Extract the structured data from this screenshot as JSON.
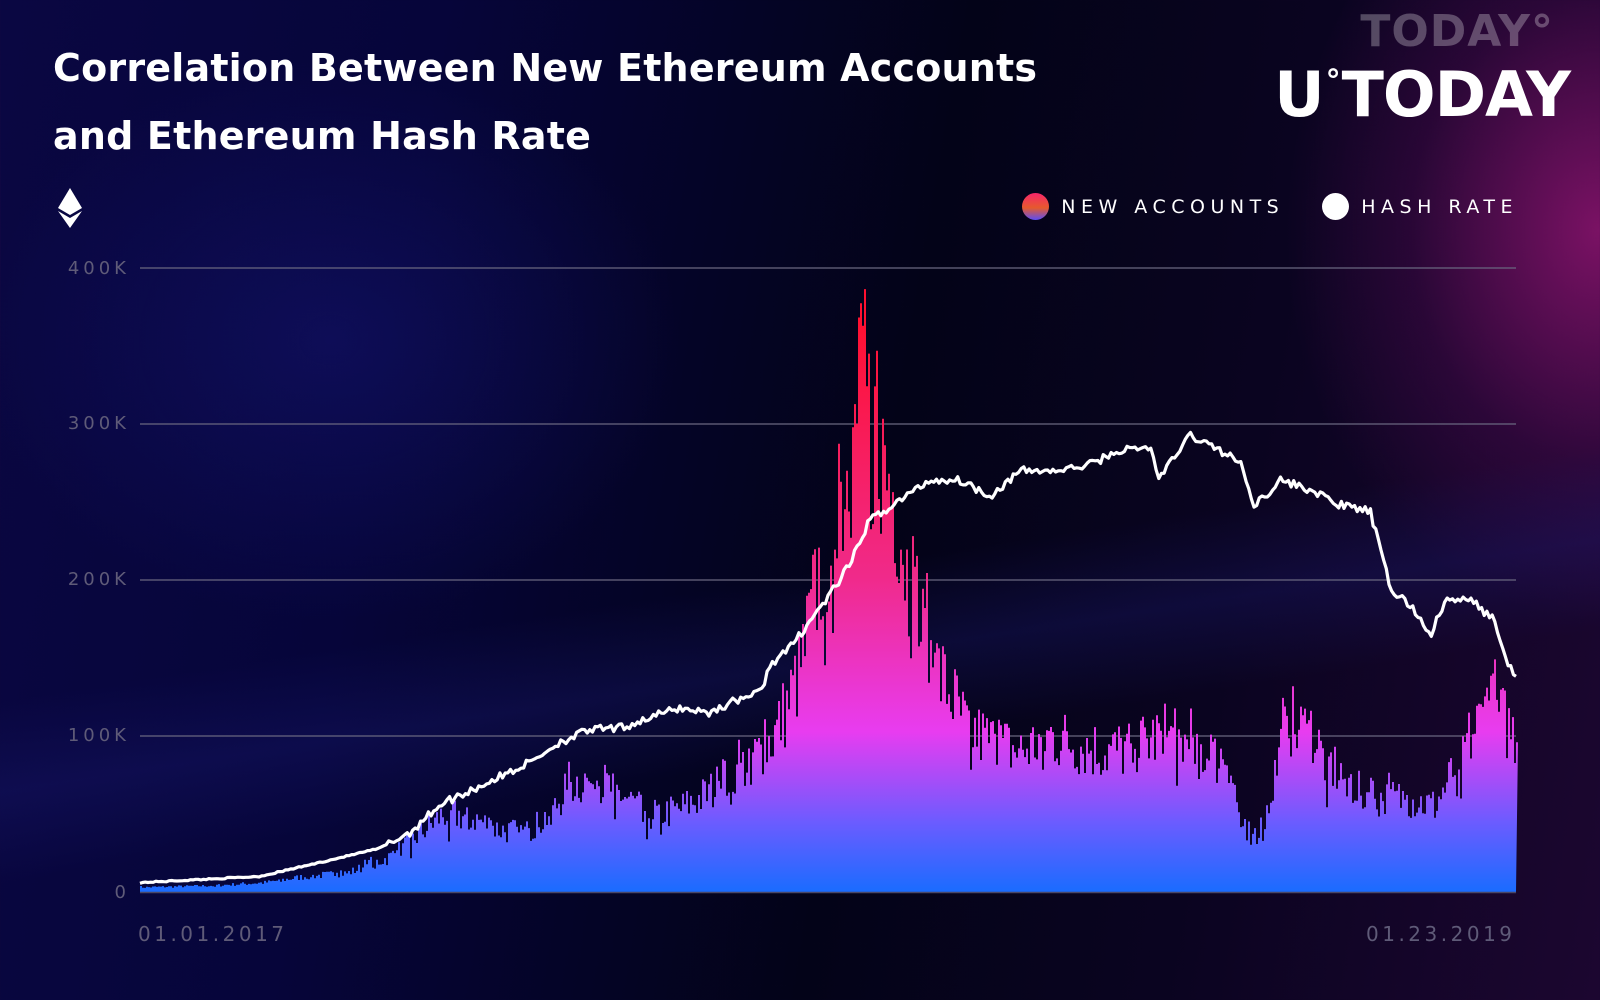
{
  "header": {
    "title_line1": "Correlation Between New Ethereum Accounts",
    "title_line2": "and Ethereum Hash Rate",
    "logo_ghost": "TODAY°",
    "logo_u": "U",
    "logo_deg": "°",
    "logo_text": "TODAY",
    "icon": "ethereum-icon"
  },
  "legend": [
    {
      "label": "NEW ACCOUNTS",
      "icon": "gradient-dot"
    },
    {
      "label": "HASH RATE",
      "icon": "white-dot"
    }
  ],
  "axes": {
    "y_ticks": [
      "400K",
      "300K",
      "200K",
      "100K",
      "0"
    ],
    "x_start": "01.01.2017",
    "x_end": "01.23.2019"
  },
  "colors": {
    "bar_top": "#ff1030",
    "bar_mid": "#e83cf0",
    "bar_bottom": "#1a6cff",
    "line": "#ffffff",
    "grid": "#6a6780"
  },
  "chart_data": {
    "type": "bar+line",
    "title": "Correlation Between New Ethereum Accounts and Ethereum Hash Rate",
    "xlabel": "",
    "ylabel": "",
    "x_range": [
      "01.01.2017",
      "01.23.2019"
    ],
    "ylim": [
      0,
      400000
    ],
    "y_ticks": [
      0,
      100000,
      200000,
      300000,
      400000
    ],
    "grid": true,
    "legend_position": "top-right",
    "series": [
      {
        "name": "NEW ACCOUNTS",
        "type": "bar",
        "note": "daily values (K), approximate envelope sampled by relative position 0..1",
        "points": [
          [
            0.0,
            3
          ],
          [
            0.05,
            4
          ],
          [
            0.09,
            6
          ],
          [
            0.12,
            10
          ],
          [
            0.15,
            12
          ],
          [
            0.18,
            22
          ],
          [
            0.2,
            35
          ],
          [
            0.22,
            50
          ],
          [
            0.24,
            48
          ],
          [
            0.26,
            40
          ],
          [
            0.28,
            38
          ],
          [
            0.3,
            52
          ],
          [
            0.31,
            70
          ],
          [
            0.33,
            72
          ],
          [
            0.35,
            62
          ],
          [
            0.37,
            50
          ],
          [
            0.39,
            52
          ],
          [
            0.41,
            62
          ],
          [
            0.43,
            75
          ],
          [
            0.45,
            90
          ],
          [
            0.46,
            100
          ],
          [
            0.47,
            120
          ],
          [
            0.48,
            145
          ],
          [
            0.49,
            190
          ],
          [
            0.5,
            230
          ],
          [
            0.51,
            260
          ],
          [
            0.52,
            300
          ],
          [
            0.525,
            365
          ],
          [
            0.53,
            320
          ],
          [
            0.535,
            305
          ],
          [
            0.54,
            270
          ],
          [
            0.55,
            250
          ],
          [
            0.56,
            185
          ],
          [
            0.57,
            160
          ],
          [
            0.58,
            140
          ],
          [
            0.59,
            125
          ],
          [
            0.6,
            105
          ],
          [
            0.62,
            95
          ],
          [
            0.64,
            90
          ],
          [
            0.66,
            100
          ],
          [
            0.68,
            95
          ],
          [
            0.7,
            90
          ],
          [
            0.72,
            92
          ],
          [
            0.74,
            100
          ],
          [
            0.76,
            95
          ],
          [
            0.78,
            85
          ],
          [
            0.79,
            90
          ],
          [
            0.8,
            40
          ],
          [
            0.815,
            38
          ],
          [
            0.83,
            100
          ],
          [
            0.85,
            105
          ],
          [
            0.86,
            85
          ],
          [
            0.88,
            70
          ],
          [
            0.9,
            60
          ],
          [
            0.92,
            60
          ],
          [
            0.94,
            55
          ],
          [
            0.95,
            70
          ],
          [
            0.96,
            90
          ],
          [
            0.97,
            105
          ],
          [
            0.98,
            120
          ],
          [
            0.99,
            110
          ],
          [
            1.0,
            100
          ]
        ]
      },
      {
        "name": "HASH RATE",
        "type": "line",
        "note": "plotted on the same visual 0–400K scale",
        "points": [
          [
            0.0,
            6
          ],
          [
            0.044,
            8
          ],
          [
            0.087,
            10
          ],
          [
            0.131,
            19
          ],
          [
            0.174,
            28
          ],
          [
            0.196,
            38
          ],
          [
            0.218,
            56
          ],
          [
            0.24,
            65
          ],
          [
            0.262,
            74
          ],
          [
            0.283,
            83
          ],
          [
            0.305,
            96
          ],
          [
            0.327,
            104
          ],
          [
            0.349,
            105
          ],
          [
            0.371,
            112
          ],
          [
            0.392,
            118
          ],
          [
            0.414,
            115
          ],
          [
            0.436,
            124
          ],
          [
            0.451,
            128
          ],
          [
            0.458,
            146
          ],
          [
            0.472,
            156
          ],
          [
            0.487,
            174
          ],
          [
            0.501,
            190
          ],
          [
            0.516,
            210
          ],
          [
            0.53,
            238
          ],
          [
            0.552,
            251
          ],
          [
            0.574,
            264
          ],
          [
            0.596,
            264
          ],
          [
            0.618,
            254
          ],
          [
            0.64,
            270
          ],
          [
            0.669,
            270
          ],
          [
            0.69,
            274
          ],
          [
            0.712,
            283
          ],
          [
            0.734,
            285
          ],
          [
            0.741,
            265
          ],
          [
            0.763,
            293
          ],
          [
            0.785,
            283
          ],
          [
            0.799,
            276
          ],
          [
            0.81,
            248
          ],
          [
            0.829,
            264
          ],
          [
            0.85,
            258
          ],
          [
            0.872,
            248
          ],
          [
            0.894,
            244
          ],
          [
            0.909,
            194
          ],
          [
            0.923,
            184
          ],
          [
            0.938,
            165
          ],
          [
            0.949,
            187
          ],
          [
            0.967,
            187
          ],
          [
            0.985,
            174
          ],
          [
            0.992,
            149
          ],
          [
            1.0,
            138
          ]
        ]
      }
    ]
  }
}
